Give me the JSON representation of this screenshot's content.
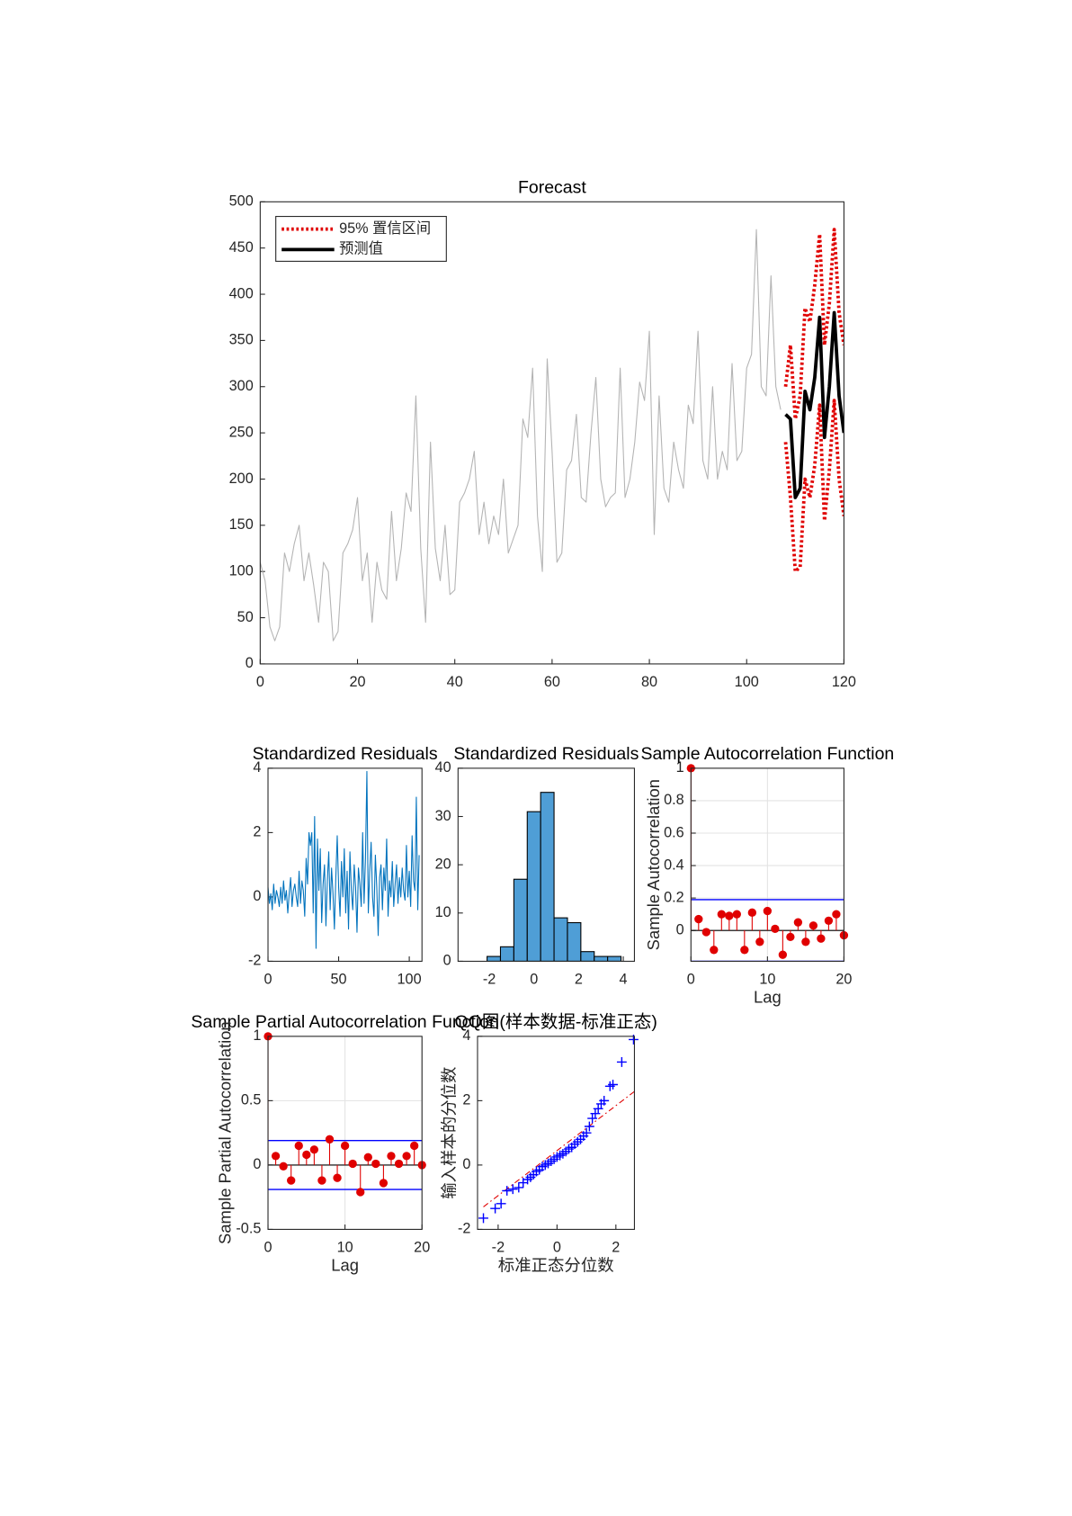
{
  "chart_data": [
    {
      "type": "line",
      "title": "Forecast",
      "xlim": [
        0,
        120
      ],
      "ylim": [
        0,
        500
      ],
      "xticks": [
        0,
        20,
        40,
        60,
        80,
        100,
        120
      ],
      "yticks": [
        0,
        50,
        100,
        150,
        200,
        250,
        300,
        350,
        400,
        450,
        500
      ],
      "grid": false,
      "legend": "northwest",
      "series": [
        {
          "color": "#b4b4b4",
          "line_style": "solid",
          "line_width": 1,
          "x": [
            0,
            1,
            2,
            3,
            4,
            5,
            6,
            7,
            8,
            9,
            10,
            11,
            12,
            13,
            14,
            15,
            16,
            17,
            18,
            19,
            20,
            21,
            22,
            23,
            24,
            25,
            26,
            27,
            28,
            29,
            30,
            31,
            32,
            33,
            34,
            35,
            36,
            37,
            38,
            39,
            40,
            41,
            42,
            43,
            44,
            45,
            46,
            47,
            48,
            49,
            50,
            51,
            52,
            53,
            54,
            55,
            56,
            57,
            58,
            59,
            60,
            61,
            62,
            63,
            64,
            65,
            66,
            67,
            68,
            69,
            70,
            71,
            72,
            73,
            74,
            75,
            76,
            77,
            78,
            79,
            80,
            81,
            82,
            83,
            84,
            85,
            86,
            87,
            88,
            89,
            90,
            91,
            92,
            93,
            94,
            95,
            96,
            97,
            98,
            99,
            100,
            101,
            102,
            103,
            104,
            105,
            106,
            107
          ],
          "values": [
            110,
            90,
            40,
            25,
            40,
            120,
            100,
            130,
            150,
            90,
            120,
            85,
            45,
            110,
            100,
            25,
            35,
            120,
            130,
            145,
            180,
            90,
            120,
            45,
            110,
            80,
            70,
            165,
            90,
            125,
            185,
            165,
            290,
            125,
            45,
            240,
            125,
            90,
            150,
            75,
            80,
            175,
            185,
            200,
            230,
            140,
            175,
            130,
            160,
            140,
            200,
            120,
            135,
            150,
            265,
            245,
            320,
            160,
            100,
            330,
            230,
            110,
            120,
            210,
            220,
            270,
            180,
            175,
            250,
            310,
            200,
            170,
            180,
            185,
            320,
            180,
            200,
            240,
            305,
            285,
            360,
            140,
            290,
            190,
            175,
            240,
            210,
            190,
            280,
            260,
            360,
            220,
            200,
            300,
            200,
            230,
            210,
            325,
            220,
            230,
            320,
            335,
            470,
            300,
            290,
            420,
            300,
            275
          ]
        },
        {
          "name": "95% 置信区间",
          "color": "#e00000",
          "line_style": "dotted",
          "line_width": 3.5,
          "x": [
            108,
            109,
            110,
            111,
            112,
            113,
            114,
            115,
            116,
            117,
            118,
            119,
            120
          ],
          "values": [
            300,
            345,
            265,
            290,
            385,
            370,
            410,
            465,
            345,
            390,
            470,
            380,
            345
          ]
        },
        {
          "color": "#e00000",
          "line_style": "dotted",
          "line_width": 3.5,
          "x": [
            108,
            109,
            110,
            111,
            112,
            113,
            114,
            115,
            116,
            117,
            118,
            119,
            120
          ],
          "values": [
            240,
            180,
            100,
            105,
            200,
            180,
            215,
            280,
            155,
            210,
            285,
            200,
            160
          ]
        },
        {
          "name": "预测值",
          "color": "#000000",
          "line_style": "solid",
          "line_width": 3.5,
          "x": [
            108,
            109,
            110,
            111,
            112,
            113,
            114,
            115,
            116,
            117,
            118,
            119,
            120
          ],
          "values": [
            270,
            265,
            180,
            190,
            295,
            275,
            310,
            375,
            245,
            300,
            380,
            290,
            250
          ]
        }
      ]
    },
    {
      "type": "line",
      "title": "Standardized Residuals",
      "xlim": [
        0,
        109
      ],
      "ylim": [
        -2,
        4
      ],
      "xticks": [
        0,
        50,
        100
      ],
      "yticks": [
        -2,
        0,
        2,
        4
      ],
      "grid": false,
      "series": [
        {
          "color": "#0072bd",
          "line_style": "solid",
          "line_width": 1,
          "x": [
            0,
            1,
            2,
            3,
            4,
            5,
            6,
            7,
            8,
            9,
            10,
            11,
            12,
            13,
            14,
            15,
            16,
            17,
            18,
            19,
            20,
            21,
            22,
            23,
            24,
            25,
            26,
            27,
            28,
            29,
            30,
            31,
            32,
            33,
            34,
            35,
            36,
            37,
            38,
            39,
            40,
            41,
            42,
            43,
            44,
            45,
            46,
            47,
            48,
            49,
            50,
            51,
            52,
            53,
            54,
            55,
            56,
            57,
            58,
            59,
            60,
            61,
            62,
            63,
            64,
            65,
            66,
            67,
            68,
            69,
            70,
            71,
            72,
            73,
            74,
            75,
            76,
            77,
            78,
            79,
            80,
            81,
            82,
            83,
            84,
            85,
            86,
            87,
            88,
            89,
            90,
            91,
            92,
            93,
            94,
            95,
            96,
            97,
            98,
            99,
            100,
            101,
            102,
            103,
            104,
            105,
            106,
            107
          ],
          "values": [
            0.3,
            -0.2,
            0.1,
            -0.4,
            0.4,
            -0.2,
            0.2,
            0.0,
            -0.3,
            0.3,
            -0.2,
            0.5,
            -0.1,
            0.2,
            -0.5,
            0.1,
            0.6,
            -0.3,
            0.2,
            0.4,
            0.0,
            -0.3,
            0.8,
            -0.2,
            0.5,
            0.2,
            -0.6,
            1.2,
            0.4,
            2.0,
            1.6,
            2.0,
            -0.5,
            2.5,
            -1.6,
            1.8,
            0.2,
            1.5,
            -0.8,
            0.4,
            1.0,
            -0.9,
            0.5,
            1.4,
            -0.4,
            0.9,
            0.1,
            -1.0,
            0.6,
            1.9,
            0.3,
            -0.6,
            1.1,
            0.0,
            1.5,
            -0.5,
            0.8,
            -1.0,
            1.4,
            0.2,
            -0.4,
            1.0,
            0.3,
            -1.1,
            0.9,
            0.4,
            -0.3,
            2.0,
            -0.2,
            1.2,
            3.9,
            -0.5,
            0.8,
            1.7,
            0.0,
            -0.6,
            1.3,
            0.3,
            -1.2,
            0.6,
            1.0,
            -0.4,
            0.9,
            0.2,
            1.8,
            -0.6,
            0.5,
            0.0,
            1.1,
            -0.3,
            0.4,
            1.0,
            -0.2,
            0.6,
            0.0,
            0.9,
            0.2,
            -0.1,
            1.6,
            0.0,
            0.8,
            -0.3,
            1.9,
            0.5,
            0.2,
            3.1,
            -0.4,
            1.3
          ]
        }
      ]
    },
    {
      "type": "histogram",
      "title": "Standardized Residuals",
      "xlim": [
        -3.4,
        4.5
      ],
      "ylim": [
        0,
        40
      ],
      "xticks": [
        -2,
        0,
        2,
        4
      ],
      "yticks": [
        0,
        10,
        20,
        30,
        40
      ],
      "grid": false,
      "color": "#4f9ed6",
      "bins": [
        -2.1,
        -1.5,
        -0.9,
        -0.3,
        0.3,
        0.9,
        1.5,
        2.1,
        2.7,
        3.3,
        3.9
      ],
      "counts": [
        1,
        3,
        17,
        31,
        35,
        9,
        8,
        2,
        1,
        1
      ]
    },
    {
      "type": "stem",
      "title": "Sample Autocorrelation Function",
      "x_label": "Lag",
      "y_label": "Sample Autocorrelation",
      "xlim": [
        0,
        20
      ],
      "ylim": [
        -0.19,
        1
      ],
      "xticks": [
        0,
        10,
        20
      ],
      "yticks": [
        0,
        0.2,
        0.4,
        0.6,
        0.8,
        1
      ],
      "grid": true,
      "color": "#e00000",
      "bounds": [
        0.19,
        -0.19
      ],
      "bounds_color": "#0000ff",
      "x": [
        0,
        1,
        2,
        3,
        4,
        5,
        6,
        7,
        8,
        9,
        10,
        11,
        12,
        13,
        14,
        15,
        16,
        17,
        18,
        19,
        20
      ],
      "values": [
        1,
        0.07,
        -0.01,
        -0.12,
        0.1,
        0.09,
        0.1,
        -0.12,
        0.11,
        -0.07,
        0.12,
        0.01,
        -0.15,
        -0.04,
        0.05,
        -0.07,
        0.03,
        -0.05,
        0.06,
        0.1,
        -0.03
      ]
    },
    {
      "type": "stem",
      "title": "Sample Partial Autocorrelation Function",
      "x_label": "Lag",
      "y_label": "Sample Partial Autocorrelation",
      "xlim": [
        0,
        20
      ],
      "ylim": [
        -0.5,
        1
      ],
      "xticks": [
        0,
        10,
        20
      ],
      "yticks": [
        -0.5,
        0,
        0.5,
        1
      ],
      "grid": true,
      "color": "#e00000",
      "bounds": [
        0.19,
        -0.19
      ],
      "bounds_color": "#0000ff",
      "x": [
        0,
        1,
        2,
        3,
        4,
        5,
        6,
        7,
        8,
        9,
        10,
        11,
        12,
        13,
        14,
        15,
        16,
        17,
        18,
        19,
        20
      ],
      "values": [
        1,
        0.07,
        -0.01,
        -0.12,
        0.15,
        0.08,
        0.12,
        -0.12,
        0.2,
        -0.1,
        0.15,
        0.01,
        -0.21,
        0.06,
        0.01,
        -0.14,
        0.07,
        0.01,
        0.07,
        0.15,
        0.0
      ]
    },
    {
      "type": "scatter",
      "title": "QQ图(样本数据-标准正态)",
      "x_label": "标准正态分位数",
      "y_label": "输入样本的分位数",
      "xlim": [
        -2.7,
        2.63
      ],
      "ylim": [
        -2,
        4
      ],
      "xticks": [
        -2,
        0,
        2
      ],
      "yticks": [
        -2,
        0,
        2,
        4
      ],
      "grid": false,
      "color": "#0000ff",
      "x": [
        -2.5,
        -2.1,
        -1.9,
        -1.7,
        -1.5,
        -1.3,
        -1.15,
        -1.0,
        -0.9,
        -0.8,
        -0.7,
        -0.6,
        -0.5,
        -0.4,
        -0.3,
        -0.2,
        -0.1,
        0.0,
        0.1,
        0.2,
        0.3,
        0.4,
        0.5,
        0.6,
        0.7,
        0.8,
        0.9,
        1.0,
        1.1,
        1.2,
        1.3,
        1.4,
        1.5,
        1.6,
        1.8,
        1.9,
        2.2,
        2.6
      ],
      "values": [
        -1.65,
        -1.35,
        -1.2,
        -0.8,
        -0.75,
        -0.7,
        -0.55,
        -0.45,
        -0.38,
        -0.3,
        -0.2,
        -0.15,
        -0.05,
        0.0,
        0.05,
        0.12,
        0.18,
        0.25,
        0.3,
        0.35,
        0.42,
        0.5,
        0.55,
        0.65,
        0.72,
        0.8,
        0.9,
        1.0,
        1.2,
        1.45,
        1.6,
        1.75,
        1.9,
        2.0,
        2.45,
        2.5,
        3.2,
        3.9
      ],
      "reference_line": {
        "x": [
          -2.5,
          2.65
        ],
        "y": [
          -1.3,
          2.3
        ],
        "color": "#e00000"
      }
    }
  ]
}
